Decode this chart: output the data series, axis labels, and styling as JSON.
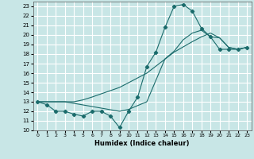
{
  "xlabel": "Humidex (Indice chaleur)",
  "xlim": [
    -0.5,
    23.5
  ],
  "ylim": [
    10,
    23.5
  ],
  "yticks": [
    10,
    11,
    12,
    13,
    14,
    15,
    16,
    17,
    18,
    19,
    20,
    21,
    22,
    23
  ],
  "xticks": [
    0,
    1,
    2,
    3,
    4,
    5,
    6,
    7,
    8,
    9,
    10,
    11,
    12,
    13,
    14,
    15,
    16,
    17,
    18,
    19,
    20,
    21,
    22,
    23
  ],
  "bg_color": "#c8e6e6",
  "line_color": "#1a6b6b",
  "grid_color": "#ffffff",
  "lines": [
    {
      "x": [
        0,
        1,
        2,
        3,
        4,
        5,
        6,
        7,
        8,
        9,
        10,
        11,
        12,
        13,
        14,
        15,
        16,
        17,
        18,
        19,
        20,
        21,
        22,
        23
      ],
      "y": [
        13.0,
        12.7,
        12.0,
        12.0,
        11.7,
        11.5,
        12.0,
        12.0,
        11.5,
        10.3,
        12.0,
        13.5,
        16.7,
        18.2,
        20.8,
        23.0,
        23.2,
        22.5,
        20.7,
        19.8,
        18.5,
        18.5,
        18.5,
        18.7
      ],
      "marker": "D",
      "markersize": 2.2
    },
    {
      "x": [
        0,
        1,
        2,
        3,
        4,
        5,
        6,
        9,
        12,
        15,
        17,
        18,
        19,
        20,
        21,
        22,
        23
      ],
      "y": [
        13.0,
        13.0,
        13.0,
        13.0,
        13.0,
        13.2,
        13.5,
        14.5,
        16.0,
        18.2,
        19.3,
        19.8,
        20.2,
        19.7,
        18.7,
        18.5,
        18.7
      ],
      "marker": null,
      "markersize": 0
    },
    {
      "x": [
        0,
        3,
        6,
        9,
        10,
        12,
        14,
        15,
        16,
        17,
        18,
        19,
        20,
        21,
        22,
        23
      ],
      "y": [
        13.0,
        13.0,
        12.5,
        12.0,
        12.2,
        13.0,
        17.5,
        18.3,
        19.5,
        20.2,
        20.5,
        19.8,
        19.7,
        18.7,
        18.5,
        18.7
      ],
      "marker": null,
      "markersize": 0
    }
  ]
}
